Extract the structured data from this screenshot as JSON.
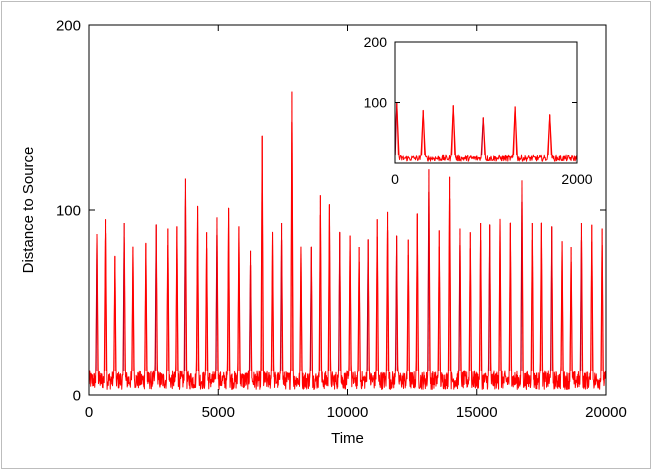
{
  "chart_data": [
    {
      "type": "line",
      "xlabel": "Time",
      "ylabel": "Distance to Source",
      "xlim": [
        0,
        20000
      ],
      "ylim": [
        0,
        200
      ],
      "xticks": [
        0,
        5000,
        10000,
        15000,
        20000
      ],
      "yticks": [
        0,
        100,
        200
      ],
      "grid": false,
      "baseline_range": [
        3,
        13
      ],
      "series": [
        {
          "color": "#ff0000",
          "spikes": [
            {
              "x": 310,
              "y": 87
            },
            {
              "x": 640,
              "y": 95
            },
            {
              "x": 1000,
              "y": 75
            },
            {
              "x": 1360,
              "y": 93
            },
            {
              "x": 1700,
              "y": 80
            },
            {
              "x": 2200,
              "y": 82
            },
            {
              "x": 2600,
              "y": 92
            },
            {
              "x": 3050,
              "y": 90
            },
            {
              "x": 3400,
              "y": 91
            },
            {
              "x": 3730,
              "y": 117
            },
            {
              "x": 4200,
              "y": 102
            },
            {
              "x": 4550,
              "y": 88
            },
            {
              "x": 4950,
              "y": 96
            },
            {
              "x": 5400,
              "y": 101
            },
            {
              "x": 5800,
              "y": 91
            },
            {
              "x": 6250,
              "y": 78
            },
            {
              "x": 6700,
              "y": 140
            },
            {
              "x": 7100,
              "y": 88
            },
            {
              "x": 7450,
              "y": 93
            },
            {
              "x": 7850,
              "y": 164
            },
            {
              "x": 8200,
              "y": 80
            },
            {
              "x": 8600,
              "y": 80
            },
            {
              "x": 8950,
              "y": 108
            },
            {
              "x": 9300,
              "y": 103
            },
            {
              "x": 9700,
              "y": 88
            },
            {
              "x": 10100,
              "y": 86
            },
            {
              "x": 10450,
              "y": 80
            },
            {
              "x": 10800,
              "y": 84
            },
            {
              "x": 11150,
              "y": 95
            },
            {
              "x": 11550,
              "y": 99
            },
            {
              "x": 11900,
              "y": 86
            },
            {
              "x": 12350,
              "y": 84
            },
            {
              "x": 12700,
              "y": 98
            },
            {
              "x": 13150,
              "y": 122
            },
            {
              "x": 13550,
              "y": 89
            },
            {
              "x": 13950,
              "y": 118
            },
            {
              "x": 14350,
              "y": 90
            },
            {
              "x": 14750,
              "y": 88
            },
            {
              "x": 15150,
              "y": 93
            },
            {
              "x": 15500,
              "y": 92
            },
            {
              "x": 15900,
              "y": 95
            },
            {
              "x": 16300,
              "y": 93
            },
            {
              "x": 16750,
              "y": 116
            },
            {
              "x": 17150,
              "y": 93
            },
            {
              "x": 17500,
              "y": 93
            },
            {
              "x": 17900,
              "y": 91
            },
            {
              "x": 18300,
              "y": 83
            },
            {
              "x": 18650,
              "y": 80
            },
            {
              "x": 19050,
              "y": 93
            },
            {
              "x": 19450,
              "y": 92
            },
            {
              "x": 19850,
              "y": 90
            }
          ]
        }
      ]
    },
    {
      "type": "line",
      "role": "inset",
      "xlim": [
        0,
        2000
      ],
      "ylim": [
        0,
        200
      ],
      "xticks": [
        0,
        2000
      ],
      "yticks": [
        100,
        200
      ],
      "grid": false,
      "baseline_range": [
        3,
        13
      ],
      "series": [
        {
          "color": "#ff0000",
          "spikes": [
            {
              "x": 20,
              "y": 100
            },
            {
              "x": 310,
              "y": 87
            },
            {
              "x": 640,
              "y": 95
            },
            {
              "x": 970,
              "y": 75
            },
            {
              "x": 1320,
              "y": 93
            },
            {
              "x": 1700,
              "y": 80
            }
          ]
        }
      ]
    }
  ]
}
